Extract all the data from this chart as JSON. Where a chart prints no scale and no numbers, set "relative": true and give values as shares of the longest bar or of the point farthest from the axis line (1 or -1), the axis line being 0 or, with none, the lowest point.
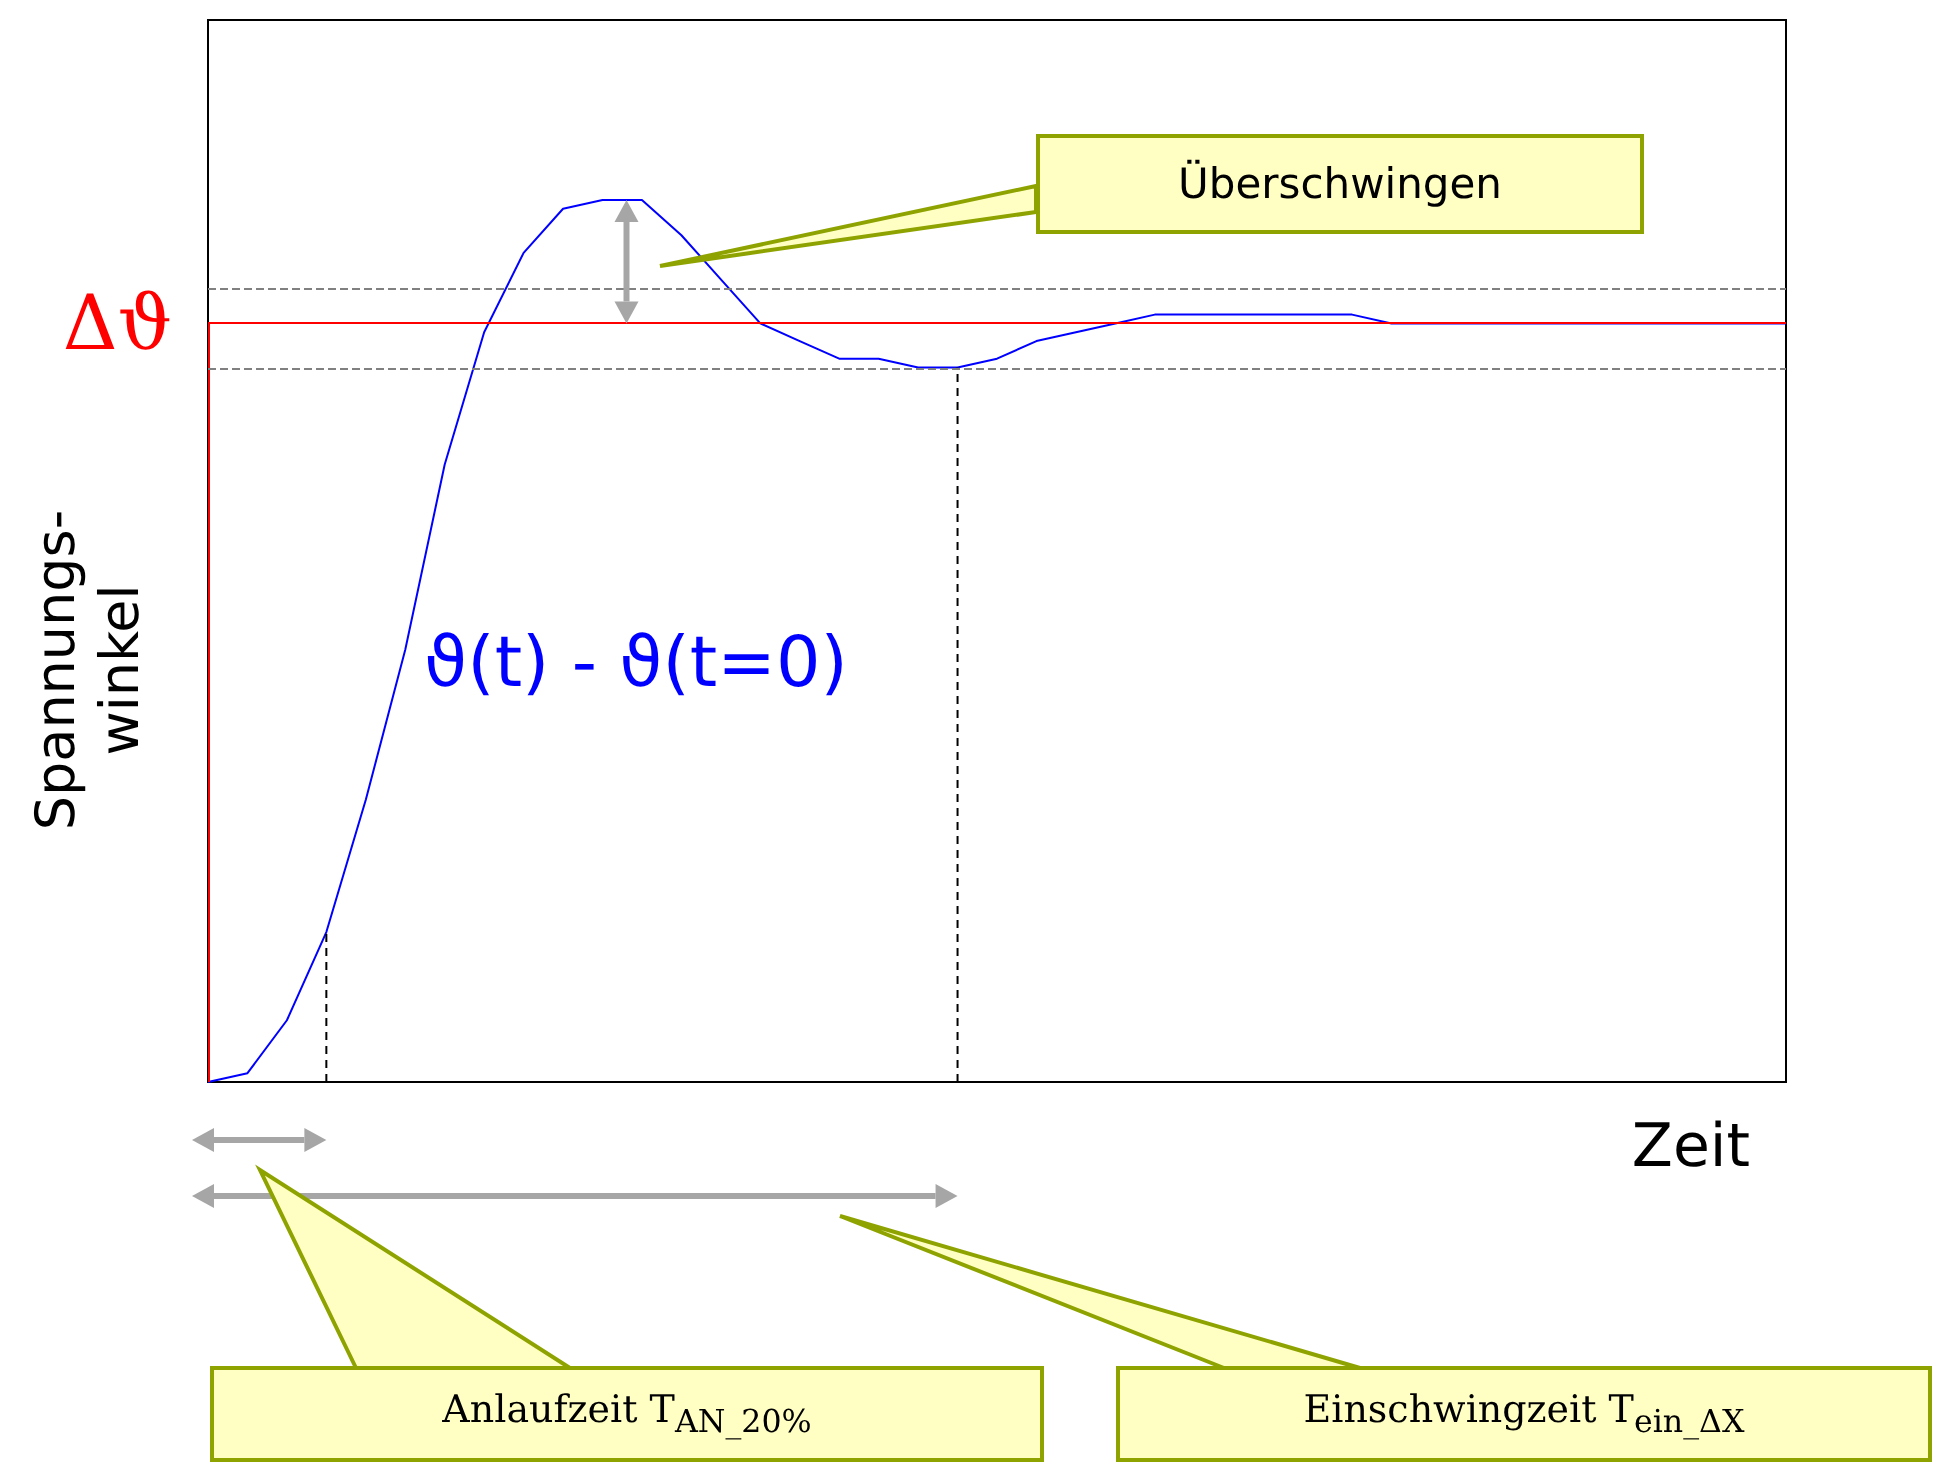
{
  "chart_data": {
    "type": "line",
    "relative": true,
    "xlabel": "Zeit",
    "ylabel": "Spannungs-\nwinkel",
    "categories": [
      null,
      null,
      null,
      null,
      null,
      null,
      null,
      null,
      null,
      null,
      null,
      null,
      null,
      null,
      null,
      null,
      null,
      null,
      null,
      null,
      null,
      null,
      null,
      null,
      null,
      null,
      null,
      null,
      null,
      null,
      null,
      null,
      null,
      null,
      null,
      null,
      null,
      null,
      null,
      null,
      null
    ],
    "series": [
      {
        "name": "ϑ(t) - ϑ(t=0)",
        "color": "#0000ff",
        "values": [
          0,
          0.01,
          0.07,
          0.17,
          0.32,
          0.49,
          0.7,
          0.85,
          0.94,
          0.99,
          1,
          1,
          0.96,
          0.91,
          0.86,
          0.84,
          0.82,
          0.82,
          0.81,
          0.81,
          0.82,
          0.84,
          0.85,
          0.86,
          0.87,
          0.87,
          0.87,
          0.87,
          0.87,
          0.87,
          0.86,
          0.86,
          0.86,
          0.86,
          0.86,
          0.86,
          0.86,
          0.86,
          0.86,
          0.86,
          0.86
        ]
      }
    ],
    "ref_lines": [
      {
        "axis": "y",
        "value": 0.86,
        "label": "Δϑ",
        "color": "#ff0000",
        "line_style": "solid"
      },
      {
        "axis": "y",
        "value": 0.9,
        "color": "#808080",
        "line_style": "dashed"
      },
      {
        "axis": "y",
        "value": 0.81,
        "color": "#808080",
        "line_style": "dashed"
      }
    ],
    "annotations": [
      "Überschwingen",
      "Anlaufzeit T$_{AN_20%}$",
      "Einschwingzeit T$_{ein_ΔX}$"
    ],
    "grid": false,
    "legend": false,
    "marker": "none",
    "line_style": "solid"
  }
}
